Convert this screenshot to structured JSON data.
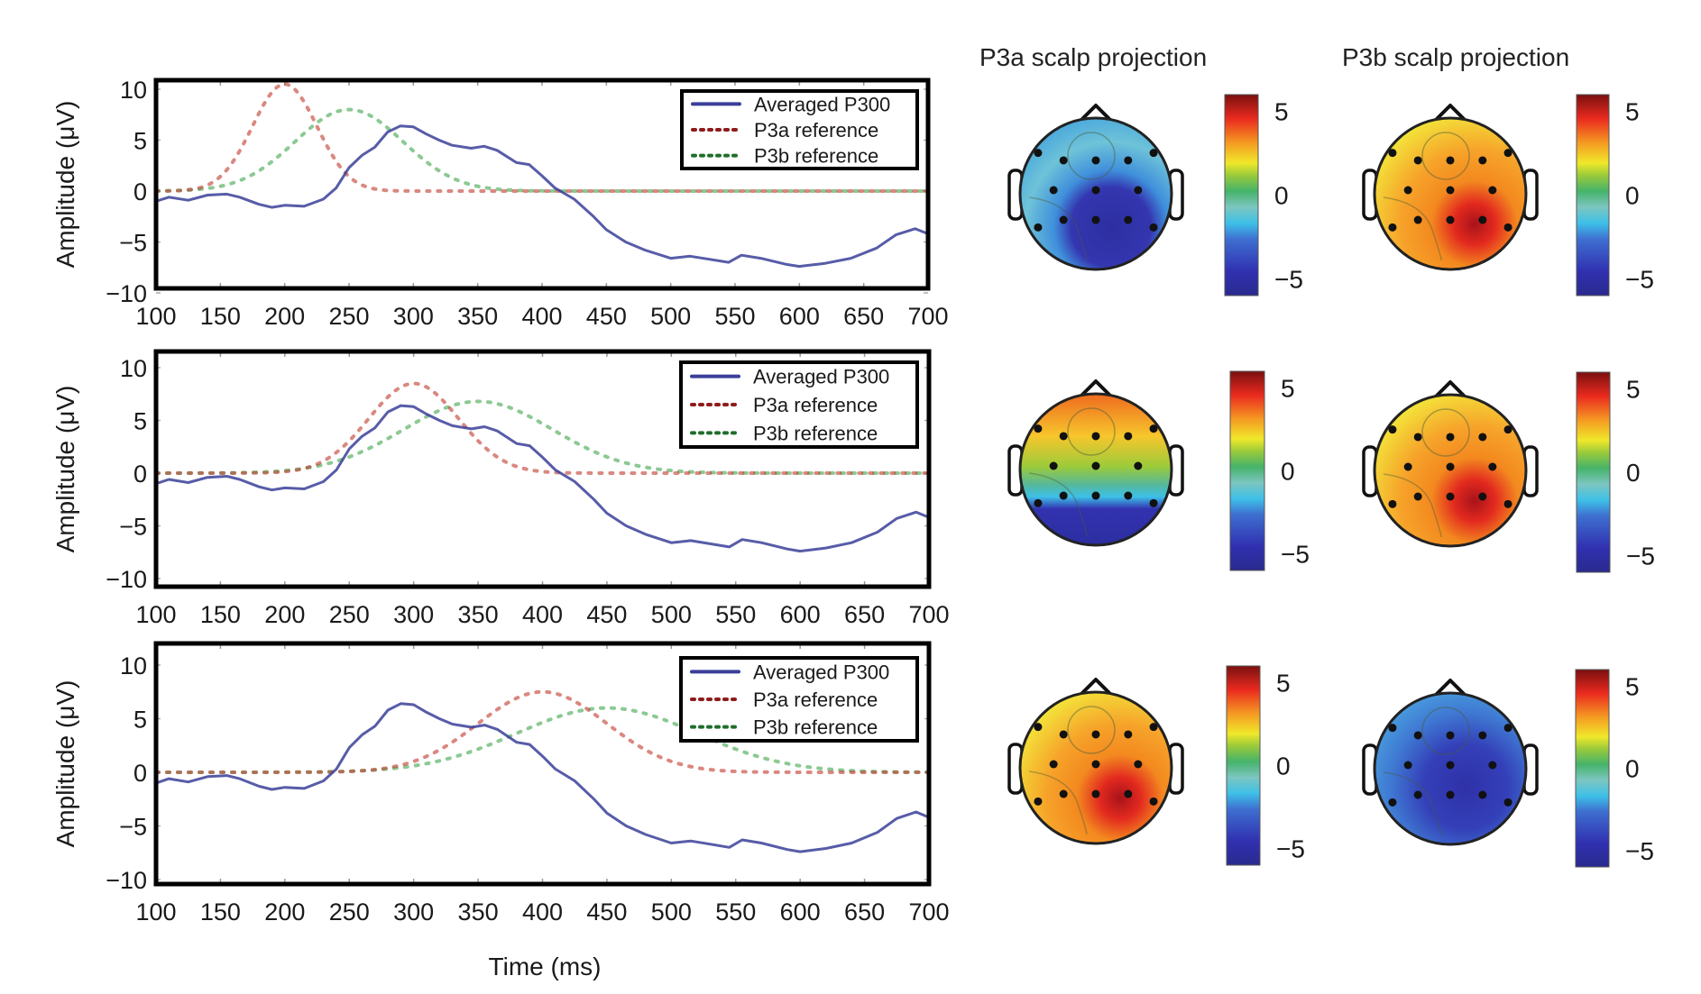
{
  "chart_data": {
    "type": "line",
    "figure": "ERP waveforms with P3a/P3b reference templates and scalp projections",
    "columns": [
      {
        "title": "P3a scalp projection"
      },
      {
        "title": "P3b scalp projection"
      }
    ],
    "shared": {
      "xlabel": "Time (ms)",
      "ylabel": "Amplitude (μV)",
      "xlim": [
        100,
        700
      ],
      "ylim": [
        -10,
        10
      ],
      "xticks": [
        100,
        150,
        200,
        250,
        300,
        350,
        400,
        450,
        500,
        550,
        600,
        650,
        700
      ],
      "yticks": [
        10,
        5,
        0,
        -5,
        -10
      ],
      "ytick_labels": [
        "10",
        "5",
        "0",
        "−5",
        "−10"
      ],
      "legend": [
        "Averaged P300",
        "P3a reference",
        "P3b reference"
      ],
      "legend_position": "top-right",
      "colors": {
        "averaged": "#3a3f99",
        "p3a": "#c0392b",
        "p3b": "#2e9c3a",
        "frame": "#000000"
      },
      "colorbar": {
        "ticks": [
          5,
          0,
          -5
        ],
        "tick_labels": [
          "5",
          "0",
          "−5"
        ],
        "range": [
          -6,
          6
        ],
        "colormap": "jet"
      }
    },
    "averaged_p300": {
      "x": [
        100,
        110,
        125,
        140,
        155,
        165,
        180,
        190,
        200,
        215,
        230,
        240,
        250,
        260,
        270,
        280,
        290,
        300,
        310,
        320,
        330,
        345,
        355,
        365,
        380,
        390,
        400,
        410,
        425,
        440,
        450,
        465,
        480,
        500,
        515,
        530,
        545,
        555,
        570,
        590,
        600,
        620,
        640,
        660,
        675,
        690,
        700
      ],
      "y": [
        -1.0,
        -0.6,
        -0.9,
        -0.4,
        -0.3,
        -0.6,
        -1.3,
        -1.6,
        -1.4,
        -1.5,
        -0.8,
        0.3,
        2.3,
        3.5,
        4.3,
        5.8,
        6.4,
        6.3,
        5.6,
        5.0,
        4.5,
        4.2,
        4.4,
        4.0,
        2.8,
        2.6,
        1.5,
        0.3,
        -0.8,
        -2.5,
        -3.8,
        -5.0,
        -5.8,
        -6.6,
        -6.4,
        -6.7,
        -7.0,
        -6.3,
        -6.6,
        -7.2,
        -7.4,
        -7.1,
        -6.6,
        -5.6,
        -4.3,
        -3.7,
        -4.2
      ]
    },
    "panels": [
      {
        "p3a_reference": {
          "peak_ms": 200,
          "peak_uv": 10.5,
          "width_ms": 25
        },
        "p3b_reference": {
          "peak_ms": 250,
          "peak_uv": 8.0,
          "width_ms": 42
        },
        "scalp": [
          {
            "column": "P3a",
            "pattern": "negative-posterior",
            "mean_uv": -3.0
          },
          {
            "column": "P3b",
            "pattern": "positive-right-parietal",
            "mean_uv": 2.5
          }
        ]
      },
      {
        "p3a_reference": {
          "peak_ms": 300,
          "peak_uv": 8.5,
          "width_ms": 35
        },
        "p3b_reference": {
          "peak_ms": 350,
          "peak_uv": 6.8,
          "width_ms": 58
        },
        "scalp": [
          {
            "column": "P3a",
            "pattern": "positive-frontal-negative-posterior",
            "mean_uv": 0.5
          },
          {
            "column": "P3b",
            "pattern": "positive-right-parietal",
            "mean_uv": 2.5
          }
        ]
      },
      {
        "p3a_reference": {
          "peak_ms": 400,
          "peak_uv": 7.5,
          "width_ms": 50
        },
        "p3b_reference": {
          "peak_ms": 450,
          "peak_uv": 6.0,
          "width_ms": 70
        },
        "scalp": [
          {
            "column": "P3a",
            "pattern": "positive-right-parietal",
            "mean_uv": 2.5
          },
          {
            "column": "P3b",
            "pattern": "negative-diffuse",
            "mean_uv": -4.0
          }
        ]
      }
    ]
  }
}
